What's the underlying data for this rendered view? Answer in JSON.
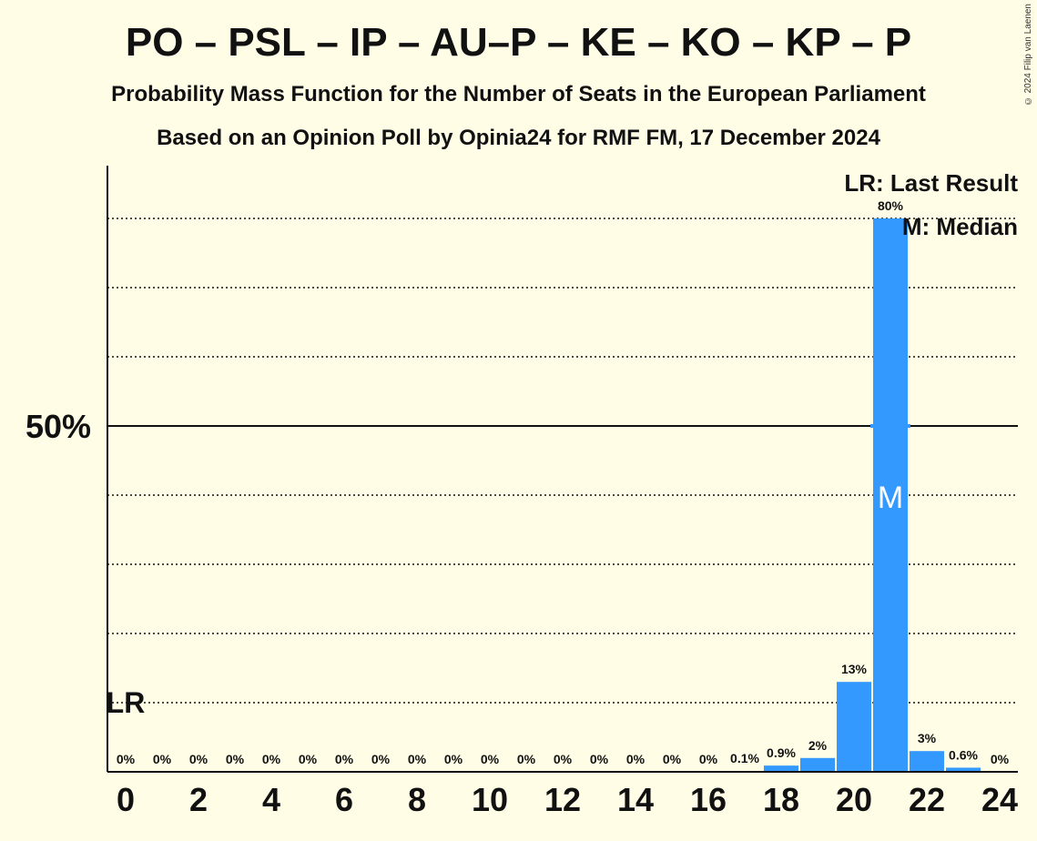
{
  "title": "PO – PSL – IP – AU–P – KE – KO – KP – P",
  "subtitle": "Probability Mass Function for the Number of Seats in the European Parliament",
  "subtitle2": "Based on an Opinion Poll by Opinia24 for RMF FM, 17 December 2024",
  "copyright": "© 2024 Filip van Laenen",
  "legend": {
    "last_result": "LR: Last Result",
    "median": "M: Median"
  },
  "colors": {
    "bar": "#3399ff",
    "background": "#fffde6"
  },
  "chart_data": {
    "type": "bar",
    "x": [
      0,
      1,
      2,
      3,
      4,
      5,
      6,
      7,
      8,
      9,
      10,
      11,
      12,
      13,
      14,
      15,
      16,
      17,
      18,
      19,
      20,
      21,
      22,
      23,
      24
    ],
    "values": [
      0,
      0,
      0,
      0,
      0,
      0,
      0,
      0,
      0,
      0,
      0,
      0,
      0,
      0,
      0,
      0,
      0,
      0.1,
      0.9,
      2,
      13,
      80,
      3,
      0.6,
      0
    ],
    "labels": [
      "0%",
      "0%",
      "0%",
      "0%",
      "0%",
      "0%",
      "0%",
      "0%",
      "0%",
      "0%",
      "0%",
      "0%",
      "0%",
      "0%",
      "0%",
      "0%",
      "0%",
      "0.1%",
      "0.9%",
      "2%",
      "13%",
      "80%",
      "3%",
      "0.6%",
      "0%"
    ],
    "x_tick_labels": [
      "0",
      "2",
      "4",
      "6",
      "8",
      "10",
      "12",
      "14",
      "16",
      "18",
      "20",
      "22",
      "24"
    ],
    "y_tick_label": "50%",
    "ylim": [
      0,
      90
    ],
    "grid": "dotted every 10%",
    "last_result": {
      "seat": 0,
      "label": "LR"
    },
    "median": {
      "seat": 21,
      "label": "M"
    },
    "legend_position": "top-right"
  }
}
